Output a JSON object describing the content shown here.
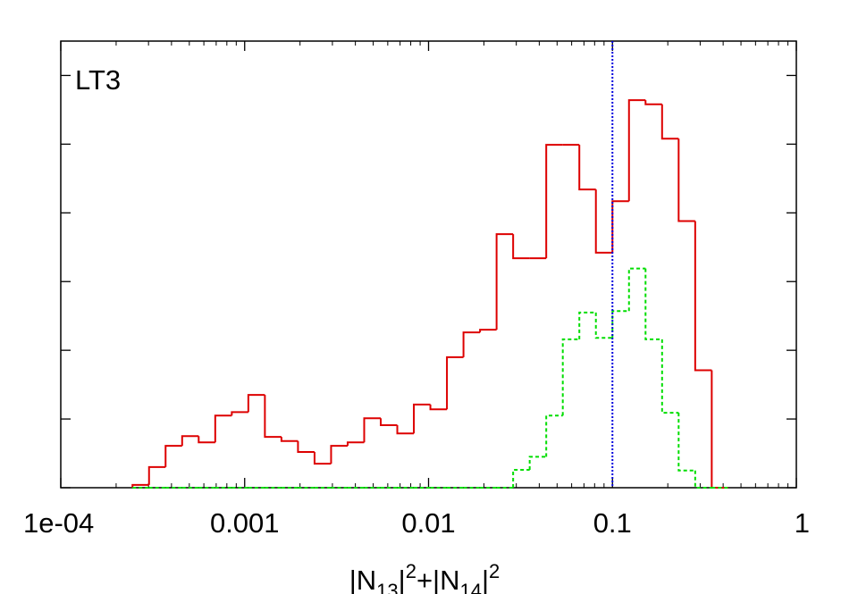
{
  "chart_data": {
    "type": "histogram",
    "annotation": "LT3",
    "xlabel": [
      "|N",
      "13",
      "|",
      "2",
      "+|N",
      "14",
      "|",
      "2"
    ],
    "xscale": "log",
    "xlim": [
      0.0001,
      1
    ],
    "xticks": [
      {
        "value": 0.0001,
        "label": "1e-04"
      },
      0.001,
      0.01,
      0.1,
      1
    ],
    "xminor_ticks": [
      0.0002,
      0.0003,
      0.0004,
      0.0005,
      0.0006,
      0.0007,
      0.0008,
      0.0009,
      0.002,
      0.003,
      0.004,
      0.005,
      0.006,
      0.007,
      0.008,
      0.009,
      0.02,
      0.03,
      0.04,
      0.05,
      0.06,
      0.07,
      0.08,
      0.09,
      0.2,
      0.3,
      0.4,
      0.5,
      0.6,
      0.7,
      0.8,
      0.9
    ],
    "ylim": [
      0,
      6.5
    ],
    "yticks": [
      0,
      1,
      2,
      3,
      4,
      5,
      6
    ],
    "vline": {
      "x": 0.1,
      "color": "#0000dd"
    },
    "bins": [
      0.0002455,
      0.000302,
      0.0003715,
      0.0004571,
      0.0005623,
      0.0006918,
      0.0008511,
      0.0010471,
      0.0012882,
      0.0015849,
      0.0019498,
      0.0023988,
      0.0029512,
      0.0036308,
      0.0044668,
      0.0054954,
      0.0067608,
      0.0083176,
      0.010233,
      0.012589,
      0.015488,
      0.019055,
      0.023442,
      0.02884,
      0.035481,
      0.043652,
      0.053703,
      0.066069,
      0.081283,
      0.1,
      0.12303,
      0.15136,
      0.18621,
      0.22909,
      0.28184,
      0.34674,
      0.42658
    ],
    "series": [
      {
        "color": "#dd0000",
        "dash": "none",
        "values": [
          0.04,
          0.3,
          0.61,
          0.75,
          0.66,
          1.05,
          1.1,
          1.35,
          0.74,
          0.68,
          0.52,
          0.35,
          0.61,
          0.66,
          1.01,
          0.91,
          0.79,
          1.21,
          1.14,
          1.9,
          2.26,
          2.3,
          3.69,
          3.34,
          3.34,
          4.99,
          4.99,
          4.34,
          3.42,
          4.17,
          5.64,
          5.58,
          5.08,
          3.88,
          1.71,
          0
        ]
      },
      {
        "color": "#00dd00",
        "dash": "4 3",
        "values": [
          0,
          0,
          0,
          0,
          0,
          0,
          0,
          0,
          0,
          0,
          0,
          0,
          0,
          0,
          0,
          0,
          0,
          0,
          0,
          0,
          0,
          0,
          0,
          0.26,
          0.45,
          1.05,
          2.16,
          2.55,
          2.18,
          2.57,
          3.19,
          2.16,
          1.09,
          0.25,
          0,
          0
        ]
      }
    ]
  }
}
